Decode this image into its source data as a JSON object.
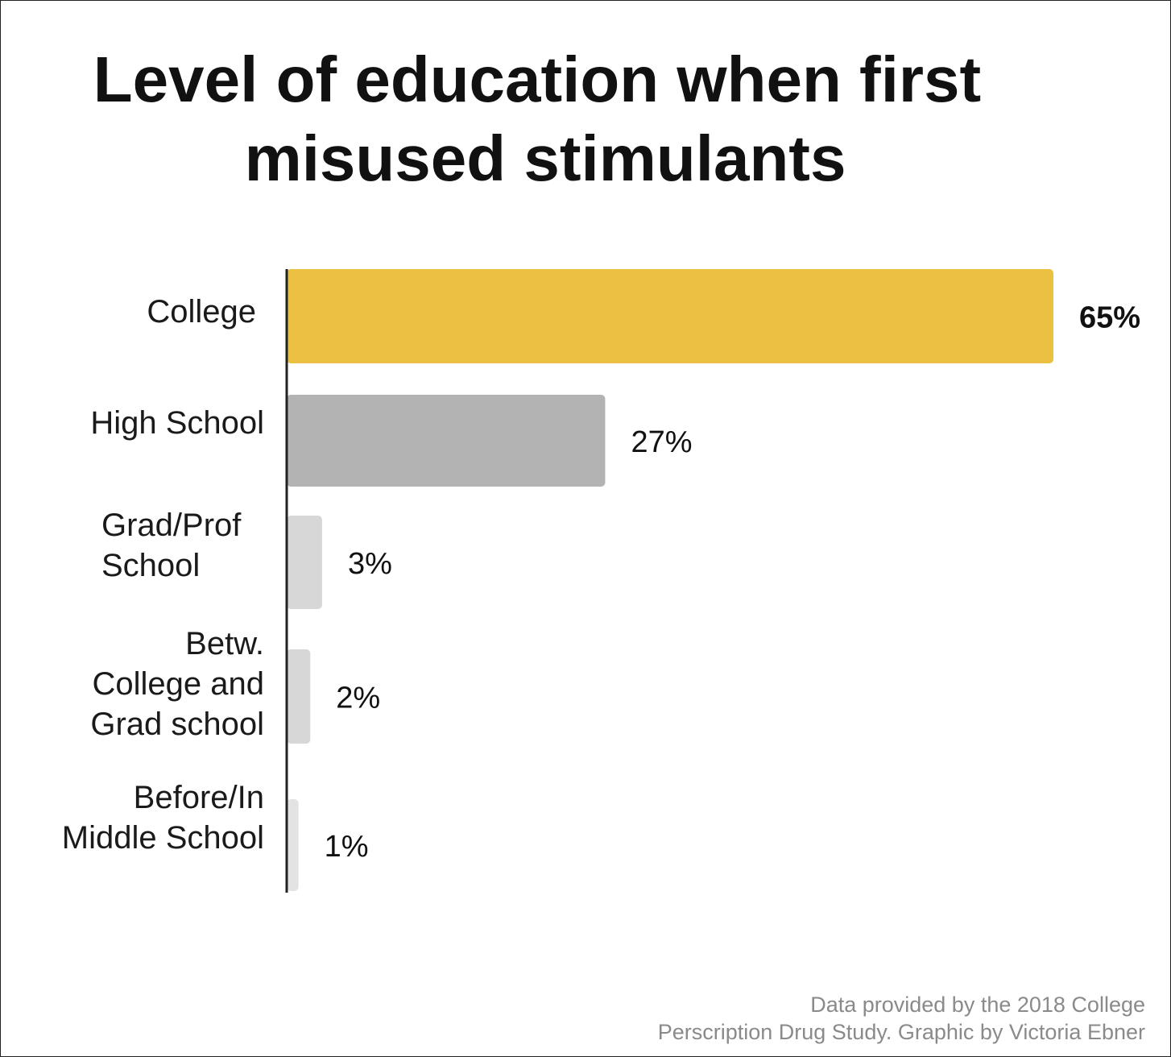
{
  "chart_data": {
    "type": "bar",
    "orientation": "horizontal",
    "title": [
      "Level of education when first",
      "misused stimulants"
    ],
    "categories": [
      [
        "College"
      ],
      [
        "High School"
      ],
      [
        "Grad/Prof",
        "School"
      ],
      [
        "Betw.",
        "College and",
        "Grad school"
      ],
      [
        "Before/In",
        "Middle School"
      ]
    ],
    "values": [
      65,
      27,
      3,
      2,
      1
    ],
    "value_labels": [
      "65%",
      "27%",
      "3%",
      "2%",
      "1%"
    ],
    "colors": [
      "#ECC043",
      "#B3B3B3",
      "#D7D7D7",
      "#D7D7D7",
      "#E3E3E3"
    ],
    "xlim": [
      0,
      65
    ],
    "grid": false,
    "legend": "none"
  },
  "source": {
    "line1": "Data provided by the 2018 College",
    "line2": "Perscription Drug Study. Graphic by Victoria Ebner"
  }
}
